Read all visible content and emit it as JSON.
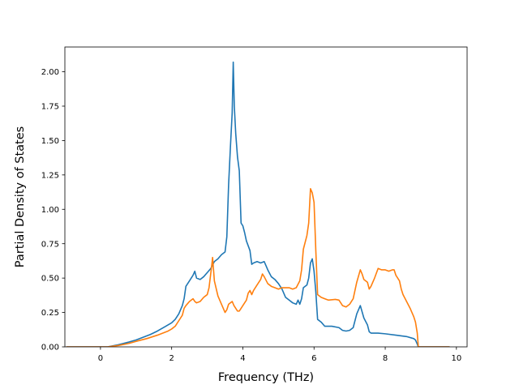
{
  "chart_data": {
    "type": "line",
    "title": "",
    "xlabel": "Frequency (THz)",
    "ylabel": "Partial Density of States",
    "xlim": [
      -1.0,
      10.3
    ],
    "ylim": [
      0.0,
      2.18
    ],
    "x_ticks": [
      "0",
      "2",
      "4",
      "6",
      "8",
      "10"
    ],
    "x_tick_values": [
      0,
      2,
      4,
      6,
      8,
      10
    ],
    "y_ticks": [
      "0.00",
      "0.25",
      "0.50",
      "0.75",
      "1.00",
      "1.25",
      "1.50",
      "1.75",
      "2.00"
    ],
    "y_tick_values": [
      0,
      0.25,
      0.5,
      0.75,
      1.0,
      1.25,
      1.5,
      1.75,
      2.0
    ],
    "grid": false,
    "legend": "none",
    "series": [
      {
        "color": "#1f77b4",
        "points": [
          [
            -0.95,
            0.0
          ],
          [
            0.0,
            0.0
          ],
          [
            0.2,
            0.0
          ],
          [
            0.5,
            0.015
          ],
          [
            0.8,
            0.035
          ],
          [
            1.0,
            0.05
          ],
          [
            1.2,
            0.07
          ],
          [
            1.4,
            0.09
          ],
          [
            1.6,
            0.115
          ],
          [
            1.8,
            0.145
          ],
          [
            2.0,
            0.175
          ],
          [
            2.1,
            0.2
          ],
          [
            2.2,
            0.24
          ],
          [
            2.3,
            0.3
          ],
          [
            2.35,
            0.35
          ],
          [
            2.4,
            0.44
          ],
          [
            2.5,
            0.48
          ],
          [
            2.6,
            0.52
          ],
          [
            2.65,
            0.55
          ],
          [
            2.7,
            0.5
          ],
          [
            2.8,
            0.49
          ],
          [
            2.9,
            0.51
          ],
          [
            3.0,
            0.54
          ],
          [
            3.1,
            0.57
          ],
          [
            3.2,
            0.62
          ],
          [
            3.3,
            0.64
          ],
          [
            3.4,
            0.67
          ],
          [
            3.5,
            0.69
          ],
          [
            3.55,
            0.8
          ],
          [
            3.6,
            1.18
          ],
          [
            3.65,
            1.45
          ],
          [
            3.7,
            1.7
          ],
          [
            3.73,
            2.07
          ],
          [
            3.76,
            1.75
          ],
          [
            3.8,
            1.55
          ],
          [
            3.85,
            1.38
          ],
          [
            3.9,
            1.28
          ],
          [
            3.95,
            0.9
          ],
          [
            4.0,
            0.88
          ],
          [
            4.05,
            0.83
          ],
          [
            4.1,
            0.77
          ],
          [
            4.2,
            0.7
          ],
          [
            4.25,
            0.6
          ],
          [
            4.3,
            0.61
          ],
          [
            4.4,
            0.62
          ],
          [
            4.5,
            0.61
          ],
          [
            4.6,
            0.62
          ],
          [
            4.65,
            0.59
          ],
          [
            4.7,
            0.56
          ],
          [
            4.8,
            0.51
          ],
          [
            4.9,
            0.49
          ],
          [
            5.0,
            0.46
          ],
          [
            5.1,
            0.42
          ],
          [
            5.2,
            0.36
          ],
          [
            5.3,
            0.34
          ],
          [
            5.4,
            0.32
          ],
          [
            5.5,
            0.31
          ],
          [
            5.55,
            0.34
          ],
          [
            5.6,
            0.31
          ],
          [
            5.65,
            0.35
          ],
          [
            5.7,
            0.43
          ],
          [
            5.8,
            0.45
          ],
          [
            5.85,
            0.5
          ],
          [
            5.9,
            0.61
          ],
          [
            5.95,
            0.64
          ],
          [
            6.0,
            0.55
          ],
          [
            6.05,
            0.4
          ],
          [
            6.1,
            0.2
          ],
          [
            6.2,
            0.18
          ],
          [
            6.3,
            0.15
          ],
          [
            6.5,
            0.15
          ],
          [
            6.7,
            0.14
          ],
          [
            6.8,
            0.12
          ],
          [
            6.9,
            0.115
          ],
          [
            7.0,
            0.12
          ],
          [
            7.1,
            0.14
          ],
          [
            7.2,
            0.24
          ],
          [
            7.3,
            0.3
          ],
          [
            7.4,
            0.21
          ],
          [
            7.5,
            0.16
          ],
          [
            7.55,
            0.11
          ],
          [
            7.6,
            0.1
          ],
          [
            7.8,
            0.1
          ],
          [
            8.0,
            0.095
          ],
          [
            8.3,
            0.085
          ],
          [
            8.6,
            0.075
          ],
          [
            8.8,
            0.06
          ],
          [
            8.85,
            0.05
          ],
          [
            8.9,
            0.02
          ],
          [
            8.93,
            0.0
          ],
          [
            9.8,
            0.0
          ]
        ]
      },
      {
        "color": "#ff7f0e",
        "points": [
          [
            -0.95,
            0.0
          ],
          [
            0.0,
            0.0
          ],
          [
            0.2,
            0.0
          ],
          [
            0.5,
            0.01
          ],
          [
            0.8,
            0.025
          ],
          [
            1.0,
            0.04
          ],
          [
            1.3,
            0.06
          ],
          [
            1.6,
            0.085
          ],
          [
            1.9,
            0.115
          ],
          [
            2.0,
            0.13
          ],
          [
            2.1,
            0.15
          ],
          [
            2.2,
            0.19
          ],
          [
            2.3,
            0.23
          ],
          [
            2.35,
            0.28
          ],
          [
            2.4,
            0.3
          ],
          [
            2.5,
            0.33
          ],
          [
            2.6,
            0.35
          ],
          [
            2.65,
            0.33
          ],
          [
            2.7,
            0.32
          ],
          [
            2.8,
            0.33
          ],
          [
            2.9,
            0.36
          ],
          [
            3.0,
            0.38
          ],
          [
            3.05,
            0.43
          ],
          [
            3.12,
            0.58
          ],
          [
            3.15,
            0.65
          ],
          [
            3.2,
            0.48
          ],
          [
            3.3,
            0.37
          ],
          [
            3.4,
            0.31
          ],
          [
            3.5,
            0.25
          ],
          [
            3.55,
            0.27
          ],
          [
            3.6,
            0.31
          ],
          [
            3.7,
            0.33
          ],
          [
            3.75,
            0.3
          ],
          [
            3.8,
            0.28
          ],
          [
            3.85,
            0.26
          ],
          [
            3.9,
            0.26
          ],
          [
            4.0,
            0.3
          ],
          [
            4.1,
            0.34
          ],
          [
            4.15,
            0.39
          ],
          [
            4.2,
            0.41
          ],
          [
            4.25,
            0.38
          ],
          [
            4.3,
            0.41
          ],
          [
            4.4,
            0.45
          ],
          [
            4.5,
            0.49
          ],
          [
            4.55,
            0.53
          ],
          [
            4.6,
            0.51
          ],
          [
            4.7,
            0.46
          ],
          [
            4.8,
            0.44
          ],
          [
            4.9,
            0.43
          ],
          [
            5.0,
            0.42
          ],
          [
            5.1,
            0.43
          ],
          [
            5.3,
            0.43
          ],
          [
            5.4,
            0.42
          ],
          [
            5.5,
            0.43
          ],
          [
            5.6,
            0.48
          ],
          [
            5.65,
            0.56
          ],
          [
            5.7,
            0.71
          ],
          [
            5.8,
            0.81
          ],
          [
            5.85,
            0.9
          ],
          [
            5.9,
            1.15
          ],
          [
            5.95,
            1.12
          ],
          [
            6.0,
            1.05
          ],
          [
            6.05,
            0.7
          ],
          [
            6.1,
            0.38
          ],
          [
            6.2,
            0.36
          ],
          [
            6.3,
            0.35
          ],
          [
            6.4,
            0.34
          ],
          [
            6.6,
            0.345
          ],
          [
            6.7,
            0.34
          ],
          [
            6.8,
            0.3
          ],
          [
            6.9,
            0.29
          ],
          [
            7.0,
            0.31
          ],
          [
            7.1,
            0.35
          ],
          [
            7.2,
            0.47
          ],
          [
            7.3,
            0.56
          ],
          [
            7.35,
            0.53
          ],
          [
            7.4,
            0.49
          ],
          [
            7.5,
            0.47
          ],
          [
            7.55,
            0.42
          ],
          [
            7.6,
            0.44
          ],
          [
            7.7,
            0.5
          ],
          [
            7.8,
            0.57
          ],
          [
            7.9,
            0.56
          ],
          [
            8.0,
            0.56
          ],
          [
            8.1,
            0.55
          ],
          [
            8.2,
            0.56
          ],
          [
            8.25,
            0.56
          ],
          [
            8.3,
            0.52
          ],
          [
            8.4,
            0.48
          ],
          [
            8.45,
            0.42
          ],
          [
            8.5,
            0.38
          ],
          [
            8.6,
            0.33
          ],
          [
            8.7,
            0.28
          ],
          [
            8.8,
            0.22
          ],
          [
            8.85,
            0.18
          ],
          [
            8.9,
            0.1
          ],
          [
            8.93,
            0.0
          ],
          [
            9.8,
            0.0
          ]
        ]
      }
    ]
  }
}
